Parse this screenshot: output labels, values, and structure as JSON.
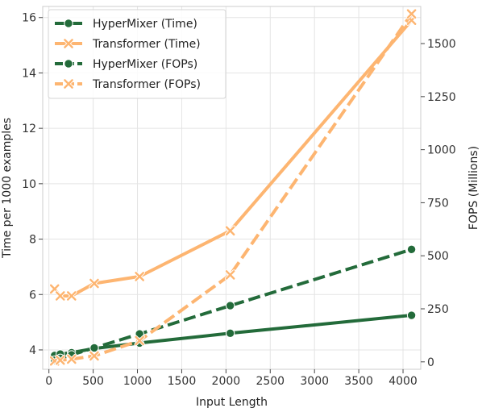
{
  "chart_data": {
    "type": "line",
    "x": [
      64,
      128,
      256,
      512,
      1024,
      2048,
      4096
    ],
    "xlabel": "Input Length",
    "xticks": [
      0,
      500,
      1000,
      1500,
      2000,
      2500,
      3000,
      3500,
      4000
    ],
    "xlim": [
      -70,
      4200
    ],
    "y_left": {
      "label": "Time per 1000 examples",
      "ticks": [
        4,
        6,
        8,
        10,
        12,
        14,
        16
      ],
      "lim": [
        3.3,
        16.4
      ]
    },
    "y_right": {
      "label": "FOPS (Millions)",
      "ticks": [
        0,
        250,
        500,
        750,
        1000,
        1250,
        1500
      ],
      "lim": [
        -35,
        1675
      ]
    },
    "legend_position": "top-left",
    "series": [
      {
        "name": "HyperMixer (Time)",
        "axis": "left",
        "style": "solid",
        "marker": "circle",
        "color": "#236b3a",
        "x": [
          64,
          128,
          256,
          512,
          1024,
          2048,
          4096
        ],
        "values": [
          3.8,
          3.85,
          3.9,
          4.05,
          4.25,
          4.6,
          5.25
        ]
      },
      {
        "name": "Transformer (Time)",
        "axis": "left",
        "style": "solid",
        "marker": "x",
        "color": "#fdb571",
        "x": [
          64,
          128,
          256,
          512,
          1024,
          2048,
          4096
        ],
        "values": [
          6.2,
          5.95,
          5.95,
          6.4,
          6.65,
          8.3,
          15.9
        ]
      },
      {
        "name": "HyperMixer (FOPs)",
        "axis": "right",
        "style": "dashed",
        "marker": "circle",
        "color": "#236b3a",
        "x": [
          64,
          128,
          256,
          512,
          1024,
          2048,
          4096
        ],
        "values": [
          8,
          17,
          33,
          66,
          132,
          265,
          530
        ]
      },
      {
        "name": "Transformer (FOPs)",
        "axis": "right",
        "style": "dashed",
        "marker": "x",
        "color": "#fdb571",
        "x": [
          64,
          128,
          256,
          512,
          1024,
          2048,
          4096
        ],
        "values": [
          4,
          8,
          13,
          28,
          100,
          410,
          1640
        ]
      }
    ]
  }
}
